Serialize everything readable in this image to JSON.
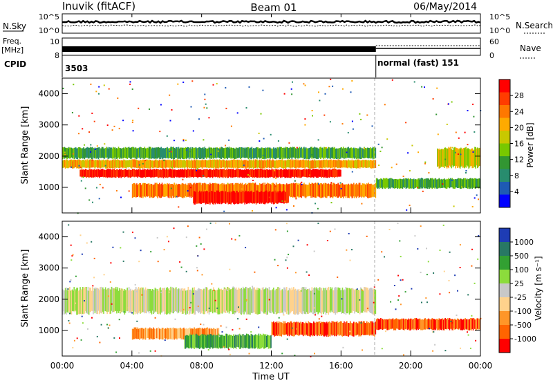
{
  "header": {
    "station": "Inuvik (fitACF)",
    "beam": "Beam 01",
    "date": "06/May/2014"
  },
  "top_panels": {
    "nsky_label": "N.Sky",
    "nsky_ticks": [
      "10^5",
      "10^0"
    ],
    "nsearch_label": "N.Search",
    "nsearch_ticks": [
      "10^5",
      "10^0"
    ],
    "freq_label": "Freq.",
    "freq_unit": "[MHz]",
    "freq_ticks": [
      "10",
      "8"
    ],
    "nave_label": "Nave",
    "nave_ticks": [
      "60",
      "0"
    ],
    "cpid_label": "CPID",
    "cpid_first": "3503",
    "cpid_second": "normal (fast) 151",
    "cpid_change_hour": 18
  },
  "axes": {
    "xlabel": "Time UT",
    "x_ticks": [
      "00:00",
      "04:00",
      "08:00",
      "12:00",
      "16:00",
      "20:00",
      "00:00"
    ],
    "x_tick_hours": [
      0,
      4,
      8,
      12,
      16,
      20,
      24
    ],
    "ylabel": "Slant Range [km]",
    "y_ticks": [
      "4000",
      "3000",
      "2000",
      "1000"
    ],
    "y_tick_values": [
      4000,
      3000,
      2000,
      1000
    ],
    "ylim": [
      180,
      4500
    ]
  },
  "power_colorbar": {
    "label": "Power [dB]",
    "ticks": [
      "28",
      "24",
      "20",
      "16",
      "12",
      "8",
      "4"
    ],
    "colors": [
      "#ff0000",
      "#ff3c00",
      "#ff7800",
      "#ffaa00",
      "#c8c800",
      "#78c800",
      "#329632",
      "#288c6e",
      "#1e5ab4",
      "#0000ff"
    ]
  },
  "velocity_colorbar": {
    "label": "Velocity [m s⁻¹]",
    "ticks": [
      "1000",
      "500",
      "100",
      "25",
      "-25",
      "-100",
      "-500",
      "-1000"
    ],
    "colors": [
      "#1e3cb4",
      "#287864",
      "#32a032",
      "#8cdc3c",
      "#c8c8c8",
      "#ffd28c",
      "#ff9628",
      "#ff6400",
      "#ff0000"
    ]
  },
  "chart_data": [
    {
      "type": "heatmap",
      "title": "Power",
      "xlabel": "Time UT",
      "ylabel": "Slant Range [km]",
      "xlim_hours": [
        0,
        24
      ],
      "ylim": [
        180,
        4500
      ],
      "colorbar": "Power [dB]",
      "bands": [
        {
          "h0": 0,
          "h1": 18,
          "r0": 1900,
          "r1": 2300,
          "level": 3
        },
        {
          "h0": 0,
          "h1": 18,
          "r0": 1600,
          "r1": 1900,
          "level": 6
        },
        {
          "h0": 1,
          "h1": 16,
          "r0": 1300,
          "r1": 1600,
          "level": 9
        },
        {
          "h0": 4,
          "h1": 18,
          "r0": 650,
          "r1": 1150,
          "level": 7
        },
        {
          "h0": 7.5,
          "h1": 13,
          "r0": 450,
          "r1": 900,
          "level": 9
        },
        {
          "h0": 18,
          "h1": 24,
          "r0": 950,
          "r1": 1300,
          "level": 3
        },
        {
          "h0": 21.5,
          "h1": 24,
          "r0": 1600,
          "r1": 2300,
          "level": 5
        }
      ]
    },
    {
      "type": "heatmap",
      "title": "Velocity",
      "xlabel": "Time UT",
      "ylabel": "Slant Range [km]",
      "xlim_hours": [
        0,
        24
      ],
      "ylim": [
        180,
        4500
      ],
      "colorbar": "Velocity [m s⁻¹]",
      "bands": [
        {
          "h0": 0,
          "h1": 18,
          "r0": 1500,
          "r1": 2400,
          "level": 4
        },
        {
          "h0": 4,
          "h1": 9,
          "r0": 700,
          "r1": 1100,
          "level": 6
        },
        {
          "h0": 7,
          "h1": 12,
          "r0": 400,
          "r1": 900,
          "level": 2
        },
        {
          "h0": 12,
          "h1": 18,
          "r0": 800,
          "r1": 1300,
          "level": 7
        },
        {
          "h0": 18,
          "h1": 24,
          "r0": 1000,
          "r1": 1400,
          "level": 7
        }
      ]
    }
  ]
}
